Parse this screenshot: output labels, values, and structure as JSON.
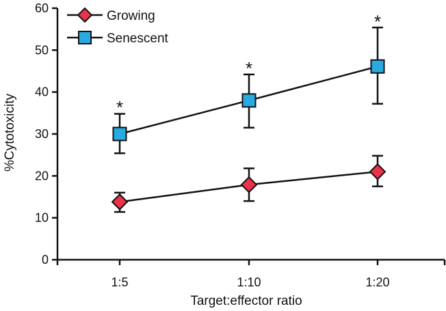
{
  "chart_data": {
    "type": "line",
    "title": "",
    "xlabel": "Target:effector ratio",
    "ylabel": "%Cytotoxicity",
    "categories": [
      "1:5",
      "1:10",
      "1:20"
    ],
    "ylim": [
      0,
      60
    ],
    "yticks": [
      0,
      10,
      20,
      30,
      40,
      50,
      60
    ],
    "grid": false,
    "legend": "top-left",
    "series": [
      {
        "name": "Growing",
        "marker": "diamond",
        "color": "#e8334a",
        "values": [
          13.8,
          17.9,
          21.0
        ],
        "err_upper": [
          16.0,
          21.8,
          24.8
        ],
        "err_lower": [
          11.4,
          14.0,
          17.5
        ]
      },
      {
        "name": "Senescent",
        "marker": "square",
        "color": "#29abe2",
        "values": [
          30.0,
          38.0,
          46.1
        ],
        "err_upper": [
          34.8,
          44.2,
          55.4
        ],
        "err_lower": [
          25.4,
          31.5,
          37.2
        ]
      }
    ],
    "annotations": [
      {
        "category": "1:5",
        "text": "*",
        "y": 37.5
      },
      {
        "category": "1:10",
        "text": "*",
        "y": 46.8
      },
      {
        "category": "1:20",
        "text": "*",
        "y": 58.0
      }
    ]
  }
}
